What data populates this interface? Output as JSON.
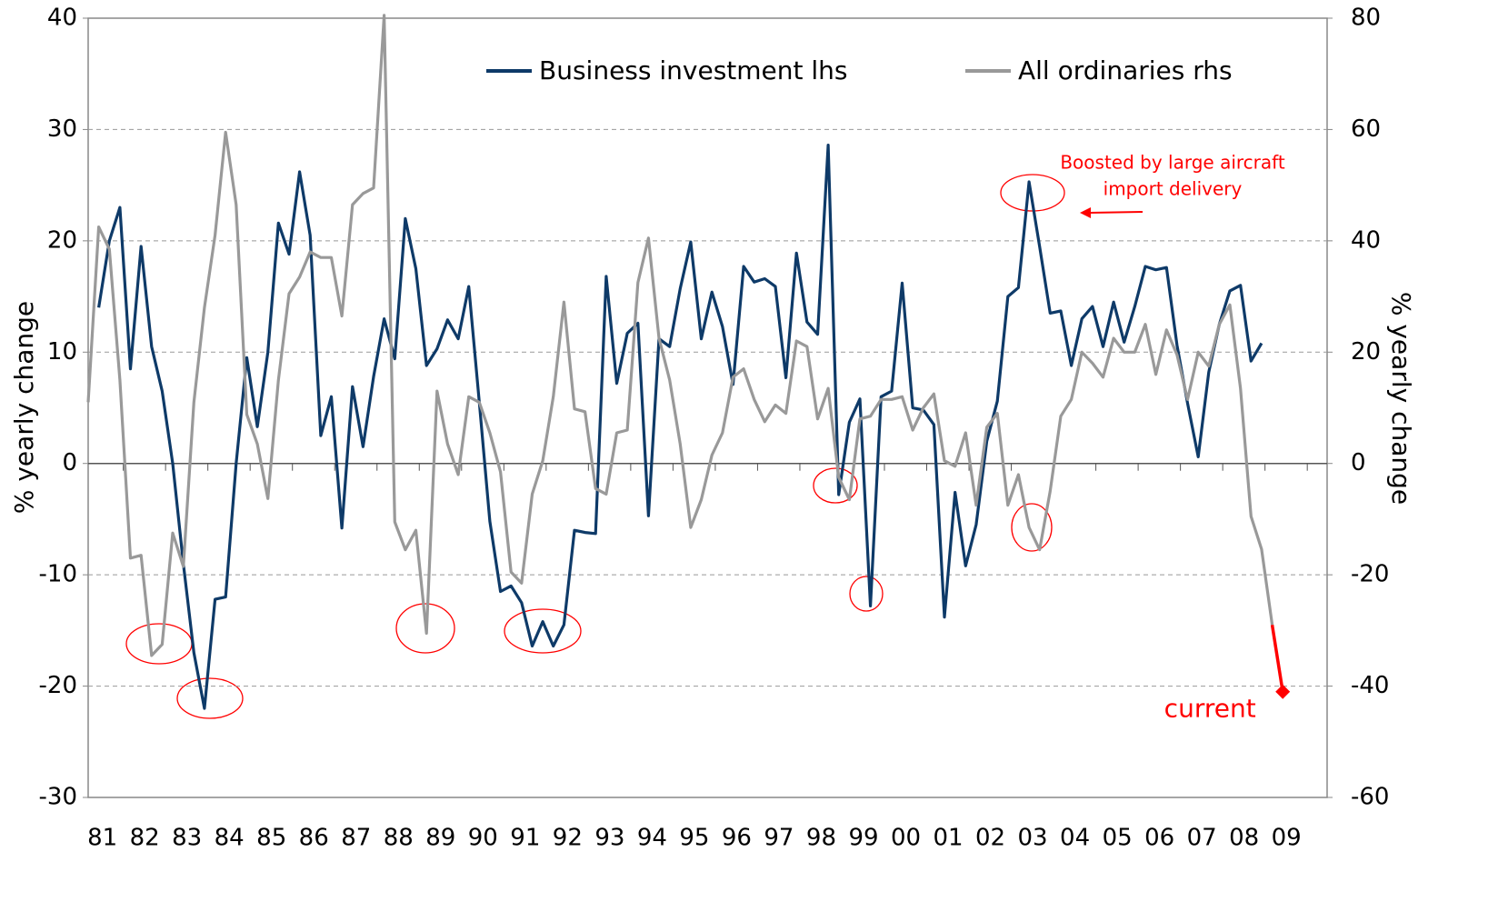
{
  "chart_data": {
    "type": "line",
    "y_label": "% yearly change",
    "y2_label": "% yearly change",
    "categories": [
      null,
      "81",
      null,
      null,
      null,
      "82",
      null,
      null,
      null,
      "83",
      null,
      null,
      null,
      "84",
      null,
      null,
      null,
      "85",
      null,
      null,
      null,
      "86",
      null,
      null,
      null,
      "87",
      null,
      null,
      null,
      "88",
      null,
      null,
      null,
      "89",
      null,
      null,
      null,
      "90",
      null,
      null,
      null,
      "91",
      null,
      null,
      null,
      "92",
      null,
      null,
      null,
      "93",
      null,
      null,
      null,
      "94",
      null,
      null,
      null,
      "95",
      null,
      null,
      null,
      "96",
      null,
      null,
      null,
      "97",
      null,
      null,
      null,
      "98",
      null,
      null,
      null,
      "99",
      null,
      null,
      null,
      "00",
      null,
      null,
      null,
      "01",
      null,
      null,
      null,
      "02",
      null,
      null,
      null,
      "03",
      null,
      null,
      null,
      "04",
      null,
      null,
      null,
      "05",
      null,
      null,
      null,
      "06",
      null,
      null,
      null,
      "07",
      null,
      null,
      null,
      "08",
      null,
      null,
      null,
      "09"
    ],
    "series": [
      {
        "name": "Business investment lhs",
        "color": "#0e3a68",
        "axis": "y",
        "values": [
          null,
          14,
          20,
          23,
          8.5,
          19.5,
          10.5,
          6.5,
          0,
          -9,
          -17,
          -22,
          -12.2,
          -12,
          0,
          9.5,
          3.3,
          10,
          21.6,
          18.8,
          26.2,
          20.5,
          2.5,
          6,
          -5.8,
          6.9,
          1.5,
          7.8,
          13,
          9.4,
          22,
          17.5,
          8.8,
          10.3,
          12.9,
          11.2,
          15.9,
          5.5,
          -5.2,
          -11.5,
          -11,
          -12.5,
          -16.4,
          -14.2,
          -16.4,
          -14.5,
          -6,
          -6.2,
          -6.3,
          16.8,
          7.2,
          11.7,
          12.6,
          -4.7,
          11.2,
          10.5,
          15.7,
          19.9,
          11.2,
          15.4,
          12.3,
          7.1,
          17.7,
          16.3,
          16.6,
          15.9,
          7.7,
          18.9,
          12.7,
          11.6,
          28.6,
          -2.8,
          3.7,
          5.8,
          -12.8,
          6,
          6.5,
          16.2,
          5,
          4.8,
          3.5,
          -13.8,
          -2.6,
          -9.2,
          -5.5,
          2,
          5.6,
          15,
          15.8,
          25.3,
          19.5,
          13.5,
          13.7,
          8.8,
          13,
          14.1,
          10.5,
          14.5,
          10.9,
          14.1,
          17.7,
          17.4,
          17.6,
          10.6,
          5.4,
          0.6,
          8.2,
          12.5,
          15.5,
          16,
          9.2,
          10.8,
          null,
          null
        ]
      },
      {
        "name": "All ordinaries rhs",
        "color": "#999999",
        "axis": "y2",
        "values": [
          11,
          42.5,
          38.5,
          15,
          -17,
          -16.5,
          -34.5,
          -32.5,
          -12.5,
          -18.5,
          11,
          28,
          41,
          59.5,
          46.5,
          8.8,
          3.5,
          -6.3,
          15,
          30.5,
          33.5,
          38,
          37,
          37,
          26.5,
          46.5,
          48.5,
          49.5,
          80.5,
          -10.5,
          -15.5,
          -12,
          -30.5,
          13,
          3.5,
          -2,
          12,
          11,
          5.5,
          -1.5,
          -19.5,
          -21.5,
          -5.5,
          0.5,
          12,
          29,
          9.8,
          9.3,
          -4.5,
          -5.5,
          5.5,
          6,
          32.5,
          40.5,
          22.5,
          15,
          3.5,
          -11.5,
          -6.5,
          1.5,
          5.5,
          15.5,
          17,
          11.5,
          7.5,
          10.5,
          9,
          22,
          21,
          8,
          13.5,
          -2.5,
          -6.5,
          8,
          8.5,
          11.5,
          11.5,
          12,
          6,
          10,
          12.5,
          0.5,
          -0.5,
          5.5,
          -7.5,
          6.5,
          9,
          -7.5,
          -2,
          -11.5,
          -15.5,
          -5,
          8.5,
          11.5,
          20,
          18,
          15.5,
          22.5,
          20,
          20,
          25,
          16,
          24,
          19.5,
          11.5,
          20,
          17.5,
          25,
          28.5,
          13.5,
          -9.5,
          -15.4,
          -29,
          null
        ]
      }
    ],
    "current": {
      "label": "current",
      "color": "#ff0000",
      "axis": "y2",
      "values": [
        null,
        null,
        null,
        null,
        null,
        null,
        null,
        null,
        null,
        null,
        null,
        null,
        null,
        null,
        null,
        null,
        null,
        null,
        null,
        null,
        null,
        null,
        null,
        null,
        null,
        null,
        null,
        null,
        null,
        null,
        null,
        null,
        null,
        null,
        null,
        null,
        null,
        null,
        null,
        null,
        null,
        null,
        null,
        null,
        null,
        null,
        null,
        null,
        null,
        null,
        null,
        null,
        null,
        null,
        null,
        null,
        null,
        null,
        null,
        null,
        null,
        null,
        null,
        null,
        null,
        null,
        null,
        null,
        null,
        null,
        null,
        null,
        null,
        null,
        null,
        null,
        null,
        null,
        null,
        null,
        null,
        null,
        null,
        null,
        null,
        null,
        null,
        null,
        null,
        null,
        null,
        null,
        null,
        null,
        null,
        null,
        null,
        null,
        null,
        null,
        null,
        null,
        null,
        null,
        null,
        null,
        null,
        null,
        null,
        null,
        null,
        null,
        null,
        -41
      ]
    },
    "annotation": [
      "Boosted by large aircraft",
      "import delivery"
    ],
    "ylim": [
      -30,
      40
    ],
    "yticks": [
      -30,
      -20,
      -10,
      0,
      10,
      20,
      30,
      40
    ],
    "y2lim": [
      -60,
      80
    ],
    "y2ticks": [
      -60,
      -40,
      -20,
      0,
      20,
      40,
      60,
      80
    ],
    "grid": true,
    "legend": "top"
  }
}
